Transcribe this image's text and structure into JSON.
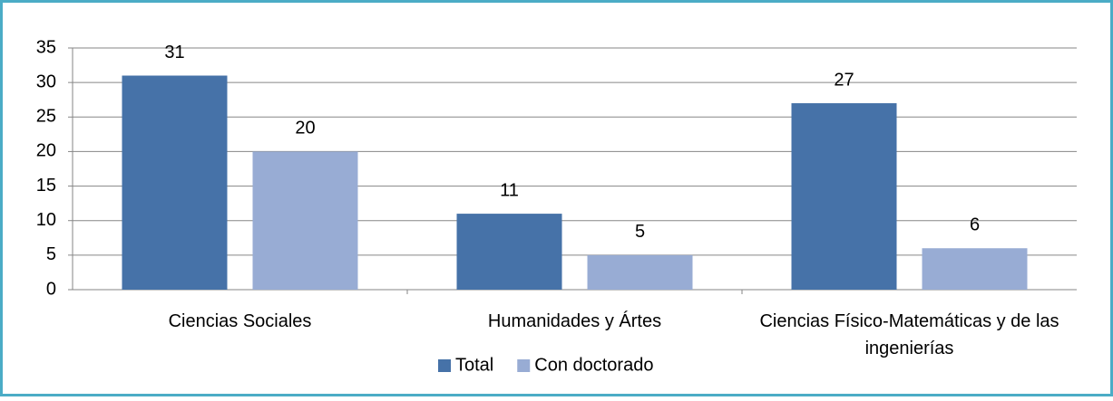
{
  "chart_data": {
    "type": "bar",
    "categories": [
      "Ciencias Sociales",
      "Humanidades y Ártes",
      "Ciencias Físico-Matemáticas y de las ingenierías"
    ],
    "series": [
      {
        "name": "Total",
        "color": "#4672a8",
        "values": [
          31,
          11,
          27
        ]
      },
      {
        "name": "Con doctorado",
        "color": "#98acd4",
        "values": [
          20,
          5,
          6
        ]
      }
    ],
    "ylim": [
      0,
      35
    ],
    "yticks": [
      0,
      5,
      10,
      15,
      20,
      25,
      30,
      35
    ],
    "grid": true,
    "legend": "bottom"
  }
}
